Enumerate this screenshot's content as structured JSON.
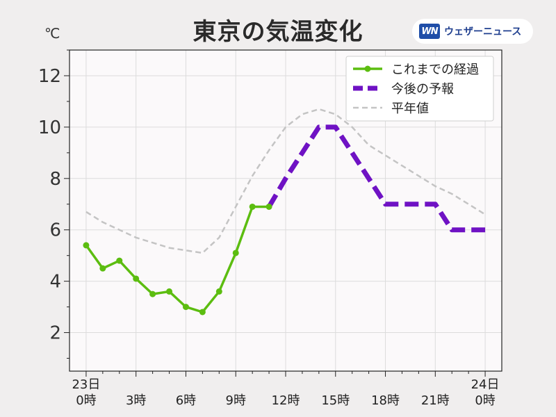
{
  "header": {
    "title": "東京の気温変化",
    "unit": "℃",
    "brand_logo": "WN",
    "brand_name": "ウェザーニュース"
  },
  "chart_data": {
    "type": "line",
    "title": "東京の気温変化",
    "ylabel": "℃",
    "xlabel": "",
    "ylim": [
      0.5,
      13
    ],
    "xlim": [
      -1,
      25
    ],
    "yticks": [
      2,
      4,
      6,
      8,
      10,
      12
    ],
    "xticks": [
      {
        "x": 0,
        "line1": "23日",
        "line2": "0時"
      },
      {
        "x": 3,
        "line1": "",
        "line2": "3時"
      },
      {
        "x": 6,
        "line1": "",
        "line2": "6時"
      },
      {
        "x": 9,
        "line1": "",
        "line2": "9時"
      },
      {
        "x": 12,
        "line1": "",
        "line2": "12時"
      },
      {
        "x": 15,
        "line1": "",
        "line2": "15時"
      },
      {
        "x": 18,
        "line1": "",
        "line2": "18時"
      },
      {
        "x": 21,
        "line1": "",
        "line2": "21時"
      },
      {
        "x": 24,
        "line1": "24日",
        "line2": "0時"
      }
    ],
    "grid": true,
    "legend_position": "top-right",
    "series": [
      {
        "name": "これまでの経過",
        "color": "#5cbd10",
        "style": "solid-markers",
        "x": [
          0,
          1,
          2,
          3,
          4,
          5,
          6,
          7,
          8,
          9,
          10,
          11
        ],
        "y": [
          5.4,
          4.5,
          4.8,
          4.1,
          3.5,
          3.6,
          3.0,
          2.8,
          3.6,
          5.1,
          6.9,
          6.9
        ]
      },
      {
        "name": "今後の予報",
        "color": "#6f12c4",
        "style": "thick-dashed",
        "x": [
          11,
          12,
          13,
          14,
          15,
          16,
          17,
          18,
          19,
          20,
          21,
          22,
          23,
          24
        ],
        "y": [
          6.9,
          8.0,
          9.0,
          10.0,
          10.0,
          9.0,
          8.0,
          7.0,
          7.0,
          7.0,
          7.0,
          6.0,
          6.0,
          6.0
        ]
      },
      {
        "name": "平年値",
        "color": "#c4c4c4",
        "style": "thin-dashed",
        "x": [
          0,
          1,
          2,
          3,
          4,
          5,
          6,
          7,
          8,
          9,
          10,
          11,
          12,
          13,
          14,
          15,
          16,
          17,
          18,
          19,
          20,
          21,
          22,
          23,
          24
        ],
        "y": [
          6.7,
          6.3,
          6.0,
          5.7,
          5.5,
          5.3,
          5.2,
          5.1,
          5.7,
          6.9,
          8.1,
          9.1,
          10.0,
          10.5,
          10.7,
          10.5,
          10.0,
          9.3,
          8.9,
          8.5,
          8.1,
          7.7,
          7.4,
          7.0,
          6.6
        ]
      }
    ]
  }
}
